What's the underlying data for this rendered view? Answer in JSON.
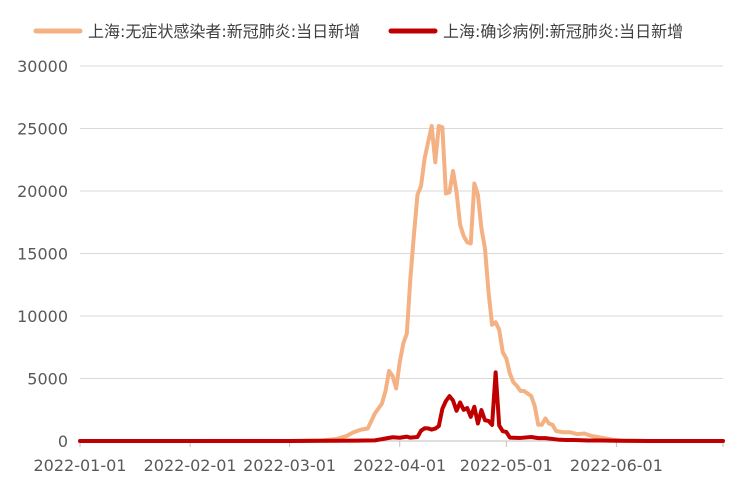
{
  "chart_data": {
    "type": "line",
    "title": "",
    "xlabel": "",
    "ylabel": "",
    "ylim": [
      0,
      30000
    ],
    "yticks": [
      0,
      5000,
      10000,
      15000,
      20000,
      25000,
      30000
    ],
    "xlim": [
      "2022-01-01",
      "2022-07-01"
    ],
    "xticks": [
      "2022-01-01",
      "2022-02-01",
      "2022-03-01",
      "2022-04-01",
      "2022-05-01",
      "2022-06-01"
    ],
    "grid": true,
    "legend_position": "top",
    "series": [
      {
        "name": "上海:无症状感染者:新冠肺炎:当日新增",
        "color": "#f4b183",
        "points": [
          [
            "2022-01-01",
            0
          ],
          [
            "2022-02-01",
            0
          ],
          [
            "2022-02-20",
            10
          ],
          [
            "2022-03-01",
            5
          ],
          [
            "2022-03-10",
            50
          ],
          [
            "2022-03-14",
            150
          ],
          [
            "2022-03-17",
            400
          ],
          [
            "2022-03-19",
            700
          ],
          [
            "2022-03-21",
            900
          ],
          [
            "2022-03-23",
            1000
          ],
          [
            "2022-03-25",
            2200
          ],
          [
            "2022-03-27",
            3000
          ],
          [
            "2022-03-28",
            4000
          ],
          [
            "2022-03-29",
            5600
          ],
          [
            "2022-03-30",
            5200
          ],
          [
            "2022-03-31",
            4200
          ],
          [
            "2022-04-01",
            6300
          ],
          [
            "2022-04-02",
            7800
          ],
          [
            "2022-04-03",
            8600
          ],
          [
            "2022-04-04",
            13000
          ],
          [
            "2022-04-05",
            16500
          ],
          [
            "2022-04-06",
            19700
          ],
          [
            "2022-04-07",
            20400
          ],
          [
            "2022-04-08",
            22600
          ],
          [
            "2022-04-09",
            23900
          ],
          [
            "2022-04-10",
            25200
          ],
          [
            "2022-04-11",
            22300
          ],
          [
            "2022-04-12",
            25200
          ],
          [
            "2022-04-13",
            25100
          ],
          [
            "2022-04-14",
            19800
          ],
          [
            "2022-04-15",
            19900
          ],
          [
            "2022-04-16",
            21600
          ],
          [
            "2022-04-17",
            19900
          ],
          [
            "2022-04-18",
            17300
          ],
          [
            "2022-04-19",
            16400
          ],
          [
            "2022-04-20",
            15900
          ],
          [
            "2022-04-21",
            15800
          ],
          [
            "2022-04-22",
            20600
          ],
          [
            "2022-04-23",
            19700
          ],
          [
            "2022-04-24",
            17000
          ],
          [
            "2022-04-25",
            15400
          ],
          [
            "2022-04-26",
            11900
          ],
          [
            "2022-04-27",
            9300
          ],
          [
            "2022-04-28",
            9500
          ],
          [
            "2022-04-29",
            8900
          ],
          [
            "2022-04-30",
            7100
          ],
          [
            "2022-05-01",
            6600
          ],
          [
            "2022-05-02",
            5400
          ],
          [
            "2022-05-03",
            4700
          ],
          [
            "2022-05-04",
            4400
          ],
          [
            "2022-05-05",
            4000
          ],
          [
            "2022-05-06",
            4000
          ],
          [
            "2022-05-07",
            3800
          ],
          [
            "2022-05-08",
            3600
          ],
          [
            "2022-05-09",
            2800
          ],
          [
            "2022-05-10",
            1300
          ],
          [
            "2022-05-11",
            1300
          ],
          [
            "2022-05-12",
            1800
          ],
          [
            "2022-05-13",
            1400
          ],
          [
            "2022-05-14",
            1300
          ],
          [
            "2022-05-15",
            800
          ],
          [
            "2022-05-17",
            700
          ],
          [
            "2022-05-19",
            700
          ],
          [
            "2022-05-21",
            550
          ],
          [
            "2022-05-23",
            600
          ],
          [
            "2022-05-25",
            400
          ],
          [
            "2022-05-28",
            250
          ],
          [
            "2022-05-31",
            100
          ],
          [
            "2022-06-03",
            20
          ],
          [
            "2022-06-10",
            5
          ],
          [
            "2022-07-01",
            0
          ]
        ]
      },
      {
        "name": "上海:确诊病例:新冠肺炎:当日新增",
        "color": "#c00000",
        "points": [
          [
            "2022-01-01",
            0
          ],
          [
            "2022-02-15",
            0
          ],
          [
            "2022-03-01",
            2
          ],
          [
            "2022-03-20",
            30
          ],
          [
            "2022-03-25",
            50
          ],
          [
            "2022-03-28",
            200
          ],
          [
            "2022-03-30",
            300
          ],
          [
            "2022-04-01",
            260
          ],
          [
            "2022-04-03",
            350
          ],
          [
            "2022-04-04",
            268
          ],
          [
            "2022-04-06",
            322
          ],
          [
            "2022-04-07",
            824
          ],
          [
            "2022-04-08",
            1015
          ],
          [
            "2022-04-09",
            1006
          ],
          [
            "2022-04-10",
            914
          ],
          [
            "2022-04-11",
            994
          ],
          [
            "2022-04-12",
            1189
          ],
          [
            "2022-04-13",
            2573
          ],
          [
            "2022-04-14",
            3200
          ],
          [
            "2022-04-15",
            3590
          ],
          [
            "2022-04-16",
            3238
          ],
          [
            "2022-04-17",
            2417
          ],
          [
            "2022-04-18",
            3084
          ],
          [
            "2022-04-19",
            2494
          ],
          [
            "2022-04-20",
            2634
          ],
          [
            "2022-04-21",
            1931
          ],
          [
            "2022-04-22",
            2736
          ],
          [
            "2022-04-23",
            1401
          ],
          [
            "2022-04-24",
            2472
          ],
          [
            "2022-04-25",
            1661
          ],
          [
            "2022-04-26",
            1606
          ],
          [
            "2022-04-27",
            1292
          ],
          [
            "2022-04-28",
            5487
          ],
          [
            "2022-04-29",
            1249
          ],
          [
            "2022-04-30",
            788
          ],
          [
            "2022-05-01",
            727
          ],
          [
            "2022-05-02",
            274
          ],
          [
            "2022-05-05",
            245
          ],
          [
            "2022-05-08",
            322
          ],
          [
            "2022-05-10",
            228
          ],
          [
            "2022-05-12",
            227
          ],
          [
            "2022-05-14",
            166
          ],
          [
            "2022-05-16",
            96
          ],
          [
            "2022-05-18",
            82
          ],
          [
            "2022-05-20",
            84
          ],
          [
            "2022-05-24",
            44
          ],
          [
            "2022-05-28",
            39
          ],
          [
            "2022-06-01",
            15
          ],
          [
            "2022-06-10",
            5
          ],
          [
            "2022-07-01",
            0
          ]
        ]
      }
    ]
  }
}
